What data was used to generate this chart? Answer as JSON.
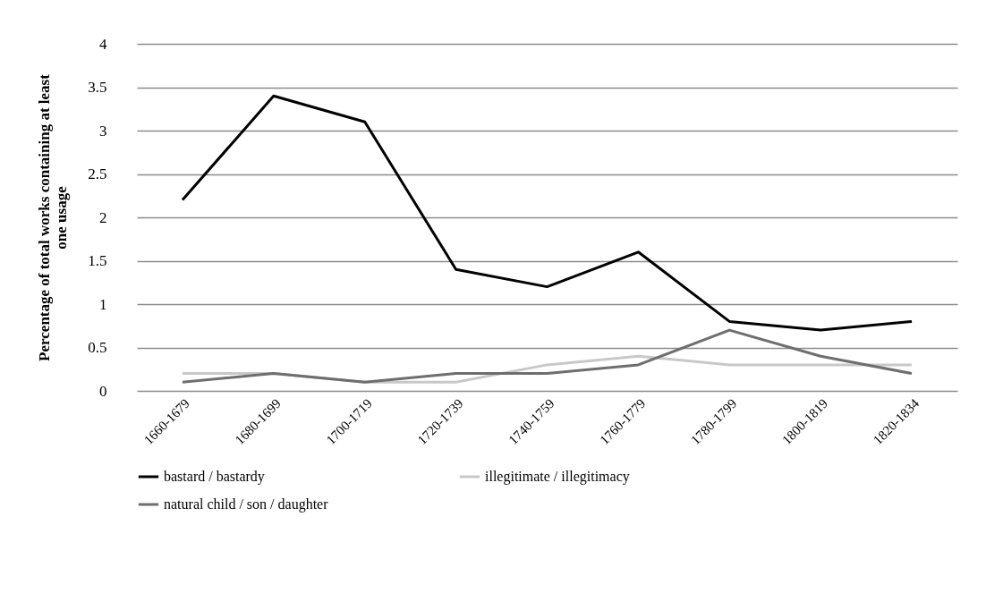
{
  "chart_data": {
    "type": "line",
    "ylabel": "Percentage of total works containing at least one usage",
    "categories": [
      "1660-1679",
      "1680-1699",
      "1700-1719",
      "1720-1739",
      "1740-1759",
      "1760-1779",
      "1780-1799",
      "1800-1819",
      "1820-1834"
    ],
    "series": [
      {
        "name": "bastard / bastardy",
        "color": "#000000",
        "values": [
          2.2,
          3.4,
          3.1,
          1.4,
          1.2,
          1.6,
          0.8,
          0.7,
          0.8
        ]
      },
      {
        "name": "illegitimate / illegitimacy",
        "color": "#c8c8c8",
        "values": [
          0.2,
          0.2,
          0.1,
          0.1,
          0.3,
          0.4,
          0.3,
          0.3,
          0.3
        ]
      },
      {
        "name": "natural child / son / daughter",
        "color": "#6e6e6e",
        "values": [
          0.1,
          0.2,
          0.1,
          0.2,
          0.2,
          0.3,
          0.7,
          0.4,
          0.2
        ]
      }
    ],
    "ylim": [
      0,
      4
    ],
    "yticks": [
      0,
      0.5,
      1,
      1.5,
      2,
      2.5,
      3,
      3.5,
      4
    ],
    "grid": "y",
    "legend": "bottom",
    "marker": "none",
    "line_style": "solid"
  }
}
